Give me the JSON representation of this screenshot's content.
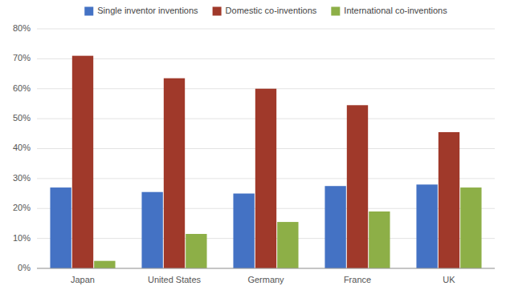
{
  "chart_data": {
    "type": "bar",
    "categories": [
      "Japan",
      "United States",
      "Germany",
      "France",
      "UK"
    ],
    "series": [
      {
        "name": "Single inventor inventions",
        "color": "#4472C4",
        "values": [
          27,
          25.5,
          25,
          27.5,
          28
        ]
      },
      {
        "name": "Domestic co-inventions",
        "color": "#A0392A",
        "values": [
          71,
          63.5,
          60,
          54.5,
          45.5
        ]
      },
      {
        "name": "International co-inventions",
        "color": "#8DAF47",
        "values": [
          2.5,
          11.5,
          15.5,
          19,
          27
        ]
      }
    ],
    "ylim": [
      0,
      80
    ],
    "yticks": [
      {
        "value": 0,
        "label": "0%"
      },
      {
        "value": 10,
        "label": "10%"
      },
      {
        "value": 20,
        "label": "20%"
      },
      {
        "value": 30,
        "label": "30%"
      },
      {
        "value": 40,
        "label": "40%"
      },
      {
        "value": 50,
        "label": "50%"
      },
      {
        "value": 60,
        "label": "60%"
      },
      {
        "value": 70,
        "label": "70%"
      },
      {
        "value": 80,
        "label": "80%"
      }
    ],
    "grid": true,
    "legend": "top"
  }
}
